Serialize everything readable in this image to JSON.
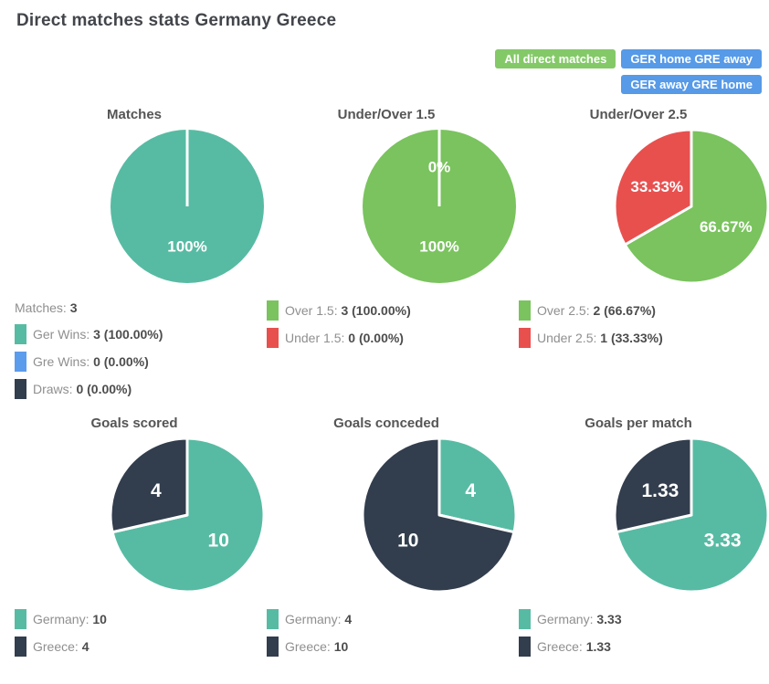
{
  "page": {
    "title": "Direct matches stats Germany Greece"
  },
  "buttons": [
    {
      "label": "All direct matches",
      "color": "#84c968"
    },
    {
      "label": "GER home GRE away",
      "color": "#569ae8"
    },
    {
      "label": "GER away GRE home",
      "color": "#569ae8"
    }
  ],
  "palette": {
    "teal": "#57bba3",
    "green": "#7ac35e",
    "red": "#e8504e",
    "dark_navy": "#323d4d",
    "blue": "#5b9cec",
    "button_green": "#84c968",
    "button_blue": "#569ae8"
  },
  "chart_data": [
    {
      "type": "pie",
      "title": "Matches",
      "slices": [
        {
          "name": "Ger Wins",
          "value": 3,
          "color": "#57bba3",
          "label": "100%"
        },
        {
          "name": "Gre Wins",
          "value": 0,
          "color": "#5b9cec",
          "label": ""
        },
        {
          "name": "Draws",
          "value": 0,
          "color": "#323d4d",
          "label": ""
        }
      ],
      "legend": [
        {
          "color": null,
          "label": "Matches:",
          "value": "3"
        },
        {
          "color": "#57bba3",
          "label": "Ger Wins:",
          "value": "3 (100.00%)"
        },
        {
          "color": "#5b9cec",
          "label": "Gre Wins:",
          "value": "0 (0.00%)"
        },
        {
          "color": "#323d4d",
          "label": "Draws:",
          "value": "0 (0.00%)"
        }
      ]
    },
    {
      "type": "pie",
      "title": "Under/Over 1.5",
      "slices": [
        {
          "name": "Over 1.5",
          "value": 3,
          "color": "#7ac35e",
          "label": "100%"
        },
        {
          "name": "Under 1.5",
          "value": 0,
          "color": "#e8504e",
          "label": "0%"
        }
      ],
      "legend": [
        {
          "color": "#7ac35e",
          "label": "Over 1.5:",
          "value": "3 (100.00%)"
        },
        {
          "color": "#e8504e",
          "label": "Under 1.5:",
          "value": "0 (0.00%)"
        }
      ]
    },
    {
      "type": "pie",
      "title": "Under/Over 2.5",
      "slices": [
        {
          "name": "Over 2.5",
          "value": 2,
          "color": "#7ac35e",
          "label": "66.67%"
        },
        {
          "name": "Under 2.5",
          "value": 1,
          "color": "#e8504e",
          "label": "33.33%"
        }
      ],
      "legend": [
        {
          "color": "#7ac35e",
          "label": "Over 2.5:",
          "value": "2 (66.67%)"
        },
        {
          "color": "#e8504e",
          "label": "Under 2.5:",
          "value": "1 (33.33%)"
        }
      ]
    },
    {
      "type": "pie",
      "title": "Goals scored",
      "slices": [
        {
          "name": "Germany",
          "value": 10,
          "color": "#57bba3",
          "label": "10"
        },
        {
          "name": "Greece",
          "value": 4,
          "color": "#323d4d",
          "label": "4"
        }
      ],
      "legend": [
        {
          "color": "#57bba3",
          "label": "Germany:",
          "value": "10"
        },
        {
          "color": "#323d4d",
          "label": "Greece:",
          "value": "4"
        }
      ]
    },
    {
      "type": "pie",
      "title": "Goals conceded",
      "slices": [
        {
          "name": "Germany",
          "value": 4,
          "color": "#57bba3",
          "label": "4"
        },
        {
          "name": "Greece",
          "value": 10,
          "color": "#323d4d",
          "label": "10"
        }
      ],
      "legend": [
        {
          "color": "#57bba3",
          "label": "Germany:",
          "value": "4"
        },
        {
          "color": "#323d4d",
          "label": "Greece:",
          "value": "10"
        }
      ]
    },
    {
      "type": "pie",
      "title": "Goals per match",
      "slices": [
        {
          "name": "Germany",
          "value": 3.33,
          "color": "#57bba3",
          "label": "3.33"
        },
        {
          "name": "Greece",
          "value": 1.33,
          "color": "#323d4d",
          "label": "1.33"
        }
      ],
      "legend": [
        {
          "color": "#57bba3",
          "label": "Germany:",
          "value": "3.33"
        },
        {
          "color": "#323d4d",
          "label": "Greece:",
          "value": "1.33"
        }
      ]
    }
  ]
}
